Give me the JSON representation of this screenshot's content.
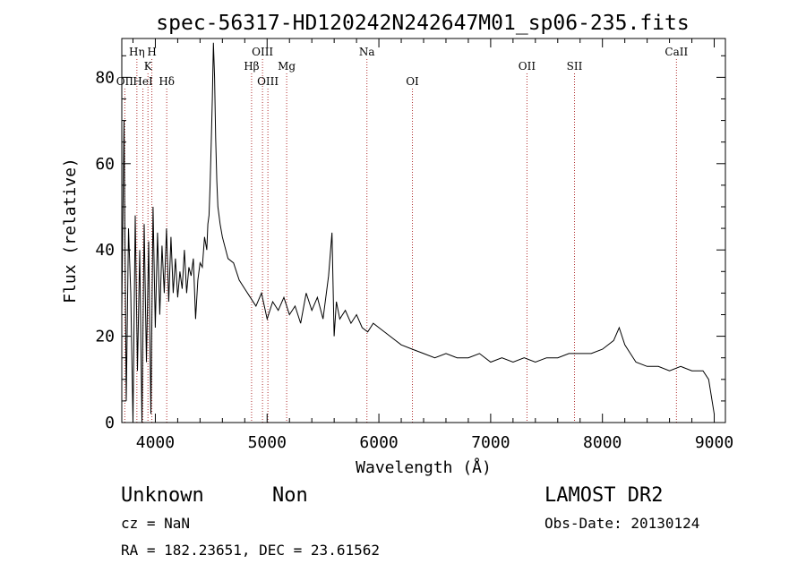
{
  "chart_data": {
    "type": "line",
    "title": "spec-56317-HD120242N242647M01_sp06-235.fits",
    "xlabel": "Wavelength (Å)",
    "ylabel": "Flux (relative)",
    "xlim": [
      3700,
      9100
    ],
    "ylim": [
      0,
      89
    ],
    "x_ticks": [
      4000,
      5000,
      6000,
      7000,
      8000,
      9000
    ],
    "y_ticks": [
      0,
      20,
      40,
      60,
      80
    ],
    "grid": false,
    "series": [
      {
        "x": [
          3700,
          3720,
          3740,
          3760,
          3780,
          3800,
          3820,
          3840,
          3860,
          3880,
          3900,
          3920,
          3940,
          3960,
          3980,
          4000,
          4020,
          4040,
          4060,
          4080,
          4100,
          4120,
          4140,
          4160,
          4180,
          4200,
          4220,
          4240,
          4260,
          4280,
          4300,
          4320,
          4340,
          4360,
          4380,
          4400,
          4420,
          4440,
          4460,
          4470,
          4480,
          4490,
          4500,
          4510,
          4520,
          4530,
          4540,
          4550,
          4560,
          4580,
          4600,
          4650,
          4700,
          4750,
          4800,
          4850,
          4900,
          4950,
          5000,
          5050,
          5100,
          5150,
          5200,
          5250,
          5300,
          5350,
          5400,
          5450,
          5500,
          5550,
          5580,
          5600,
          5620,
          5650,
          5700,
          5750,
          5800,
          5850,
          5900,
          5950,
          6000,
          6100,
          6200,
          6300,
          6400,
          6500,
          6600,
          6700,
          6800,
          6900,
          7000,
          7100,
          7200,
          7300,
          7400,
          7500,
          7600,
          7700,
          7800,
          7900,
          8000,
          8100,
          8150,
          8200,
          8250,
          8300,
          8400,
          8500,
          8600,
          8700,
          8800,
          8900,
          8950,
          9000
        ],
        "y": [
          26,
          70,
          5,
          45,
          30,
          0,
          48,
          12,
          40,
          0,
          46,
          14,
          42,
          2,
          50,
          22,
          44,
          25,
          41,
          30,
          45,
          28,
          43,
          30,
          38,
          29,
          35,
          31,
          40,
          30,
          36,
          34,
          38,
          24,
          33,
          37,
          36,
          43,
          40,
          46,
          48,
          55,
          65,
          75,
          88,
          80,
          66,
          56,
          50,
          46,
          43,
          38,
          37,
          33,
          31,
          29,
          27,
          30,
          24,
          28,
          26,
          29,
          25,
          27,
          23,
          30,
          26,
          29,
          24,
          34,
          44,
          20,
          28,
          24,
          26,
          23,
          25,
          22,
          21,
          23,
          22,
          20,
          18,
          17,
          16,
          15,
          16,
          15,
          15,
          16,
          14,
          15,
          14,
          15,
          14,
          15,
          15,
          16,
          16,
          16,
          17,
          19,
          22,
          18,
          16,
          14,
          13,
          13,
          12,
          13,
          12,
          12,
          10,
          2
        ]
      }
    ],
    "line_markers": [
      {
        "name": "Hη",
        "wavelength": 3835,
        "row": 0
      },
      {
        "name": "H",
        "wavelength": 3969,
        "row": 0
      },
      {
        "name": "OIII",
        "wavelength": 4959,
        "row": 0
      },
      {
        "name": "Na",
        "wavelength": 5893,
        "row": 0
      },
      {
        "name": "CaII",
        "wavelength": 8662,
        "row": 0
      },
      {
        "name": "K",
        "wavelength": 3934,
        "row": 1
      },
      {
        "name": "Hβ",
        "wavelength": 4861,
        "row": 1
      },
      {
        "name": "Mg",
        "wavelength": 5175,
        "row": 1
      },
      {
        "name": "OII",
        "wavelength": 7325,
        "row": 1
      },
      {
        "name": "SII",
        "wavelength": 7750,
        "row": 1
      },
      {
        "name": "OII",
        "wavelength": 3727,
        "row": 2
      },
      {
        "name": "HeI",
        "wavelength": 3889,
        "row": 2
      },
      {
        "name": "Hδ",
        "wavelength": 4102,
        "row": 2
      },
      {
        "name": "OIII",
        "wavelength": 5007,
        "row": 2
      },
      {
        "name": "OI",
        "wavelength": 6300,
        "row": 2
      }
    ]
  },
  "info": {
    "class": "Unknown",
    "subclass": "Non",
    "survey": "LAMOST DR2",
    "cz": "cz = NaN",
    "obs_date": "Obs-Date: 20130124",
    "coords": "RA = 182.23651, DEC =  23.61562"
  },
  "colors": {
    "line_marker": "#b03030",
    "spectrum": "#000000"
  }
}
